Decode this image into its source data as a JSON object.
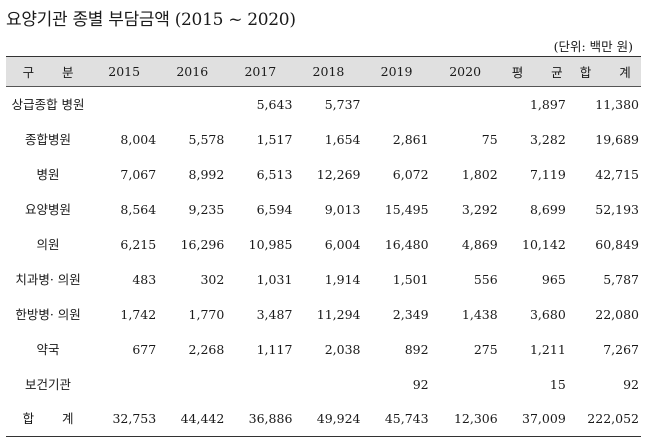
{
  "title": "요양기관 종별 부담금액 (2015 ~ 2020)",
  "unit": "(단위: 백만 원)",
  "header": {
    "category": "구 분",
    "years": [
      "2015",
      "2016",
      "2017",
      "2018",
      "2019",
      "2020"
    ],
    "average": "평 균",
    "total": "합 계"
  },
  "rows": [
    {
      "category": "상급종합 병원",
      "values": [
        "",
        "",
        "5,643",
        "5,737",
        "",
        ""
      ],
      "average": "1,897",
      "total": "11,380"
    },
    {
      "category": "종합병원",
      "values": [
        "8,004",
        "5,578",
        "1,517",
        "1,654",
        "2,861",
        "75"
      ],
      "average": "3,282",
      "total": "19,689"
    },
    {
      "category": "병원",
      "values": [
        "7,067",
        "8,992",
        "6,513",
        "12,269",
        "6,072",
        "1,802"
      ],
      "average": "7,119",
      "total": "42,715"
    },
    {
      "category": "요양병원",
      "values": [
        "8,564",
        "9,235",
        "6,594",
        "9,013",
        "15,495",
        "3,292"
      ],
      "average": "8,699",
      "total": "52,193"
    },
    {
      "category": "의원",
      "values": [
        "6,215",
        "16,296",
        "10,985",
        "6,004",
        "16,480",
        "4,869"
      ],
      "average": "10,142",
      "total": "60,849"
    },
    {
      "category": "치과병· 의원",
      "values": [
        "483",
        "302",
        "1,031",
        "1,914",
        "1,501",
        "556"
      ],
      "average": "965",
      "total": "5,787"
    },
    {
      "category": "한방병· 의원",
      "values": [
        "1,742",
        "1,770",
        "3,487",
        "11,294",
        "2,349",
        "1,438"
      ],
      "average": "3,680",
      "total": "22,080"
    },
    {
      "category": "약국",
      "values": [
        "677",
        "2,268",
        "1,117",
        "2,038",
        "892",
        "275"
      ],
      "average": "1,211",
      "total": "7,267"
    },
    {
      "category": "보건기관",
      "values": [
        "",
        "",
        "",
        "",
        "92",
        ""
      ],
      "average": "15",
      "total": "92"
    },
    {
      "category": "합 계",
      "values": [
        "32,753",
        "44,442",
        "36,886",
        "49,924",
        "45,743",
        "12,306"
      ],
      "average": "37,009",
      "total": "222,052"
    }
  ]
}
